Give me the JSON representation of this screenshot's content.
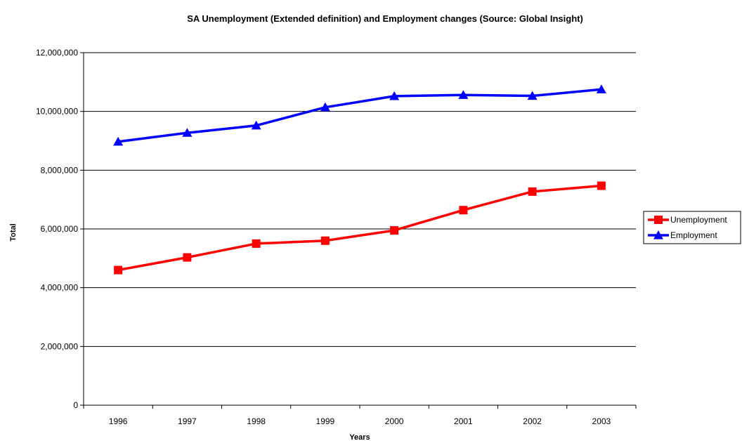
{
  "chart_data": {
    "type": "line",
    "title": "SA Unemployment (Extended definition) and Employment changes (Source: Global Insight)",
    "xlabel": "Years",
    "ylabel": "Total",
    "categories": [
      "1996",
      "1997",
      "1998",
      "1999",
      "2000",
      "2001",
      "2002",
      "2003"
    ],
    "ylim": [
      0,
      12000000
    ],
    "yticks": [
      0,
      2000000,
      4000000,
      6000000,
      8000000,
      10000000,
      12000000
    ],
    "ytick_labels": [
      "0",
      "2,000,000",
      "4,000,000",
      "6,000,000",
      "8,000,000",
      "10,000,000",
      "12,000,000"
    ],
    "grid": "horizontal",
    "legend_position": "right",
    "series": [
      {
        "name": "Unemployment",
        "color": "#ff0000",
        "marker": "square",
        "values": [
          4600000,
          5030000,
          5500000,
          5600000,
          5950000,
          6640000,
          7270000,
          7470000
        ]
      },
      {
        "name": "Employment",
        "color": "#0000ff",
        "marker": "triangle",
        "values": [
          8970000,
          9270000,
          9520000,
          10140000,
          10520000,
          10560000,
          10530000,
          10750000
        ]
      }
    ]
  }
}
